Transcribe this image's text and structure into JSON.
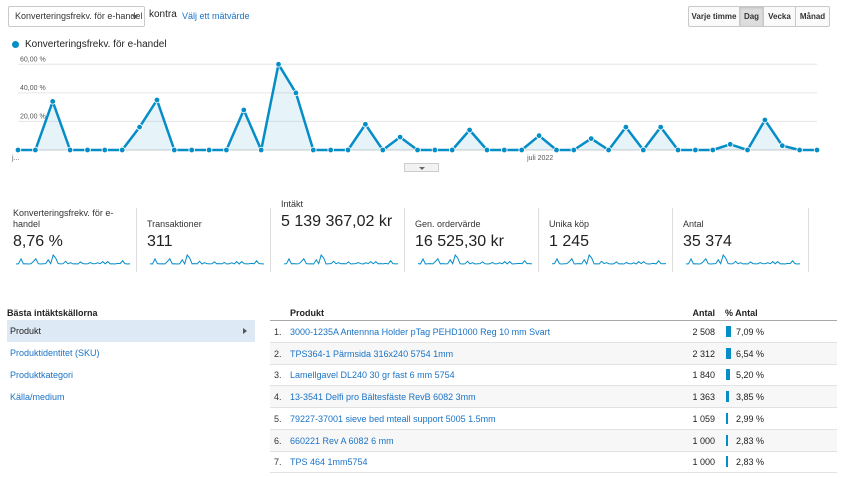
{
  "controls": {
    "metric_select": "Konverteringsfrekv. för e-handel",
    "vs_label": "kontra",
    "choose_metric": "Välj ett mätvärde",
    "time_buttons": [
      {
        "label": "Varje timme",
        "active": false
      },
      {
        "label": "Dag",
        "active": true
      },
      {
        "label": "Vecka",
        "active": false
      },
      {
        "label": "Månad",
        "active": false
      }
    ]
  },
  "legend": {
    "label": "Konverteringsfrekv. för e-handel",
    "color": "#058dc7"
  },
  "chart_data": {
    "type": "area",
    "series": [
      {
        "name": "Konverteringsfrekv. för e-handel",
        "values": [
          0,
          0,
          34,
          0,
          0,
          0,
          0,
          16,
          35,
          0,
          0,
          0,
          0,
          28,
          0,
          60,
          40,
          0,
          0,
          0,
          18,
          0,
          9,
          0,
          0,
          0,
          14,
          0,
          0,
          0,
          10,
          0,
          0,
          8,
          0,
          16,
          0,
          16,
          0,
          0,
          0,
          4,
          0,
          21,
          3,
          0,
          0
        ]
      }
    ],
    "y_ticks": [
      "20,00 %",
      "40,00 %",
      "60,00 %"
    ],
    "y_tick_values": [
      20,
      40,
      60
    ],
    "x_labels": [
      {
        "index": 0,
        "label": "j..."
      },
      {
        "index": 30,
        "label": "juli 2022"
      }
    ],
    "ylim": [
      0,
      70
    ],
    "grid": true
  },
  "scorecards": [
    {
      "title": "Konverteringsfrekv. för e-handel",
      "value": "8,76 %"
    },
    {
      "title": "Transaktioner",
      "value": "311"
    },
    {
      "title": "Intäkt",
      "value": "5 139 367,02 kr"
    },
    {
      "title": "Gen. ordervärde",
      "value": "16 525,30 kr"
    },
    {
      "title": "Unika köp",
      "value": "1 245"
    },
    {
      "title": "Antal",
      "value": "35 374"
    }
  ],
  "sources": {
    "header": "Bästa intäktskällorna",
    "items": [
      {
        "label": "Produkt",
        "active": true
      },
      {
        "label": "Produktidentitet (SKU)",
        "active": false
      },
      {
        "label": "Produktkategori",
        "active": false
      },
      {
        "label": "Källa/medium",
        "active": false
      }
    ]
  },
  "table": {
    "headers": {
      "product": "Produkt",
      "qty": "Antal",
      "pct": "% Antal"
    },
    "rows": [
      {
        "idx": "1.",
        "product": "3000-1235A Antennna Holder pTag PEHD1000 Reg 10 mm Svart",
        "qty": "2 508",
        "pct": "7,09 %",
        "pct_value": 7.09
      },
      {
        "idx": "2.",
        "product": "TPS364-1 Pärmsida 316x240 5754 1mm",
        "qty": "2 312",
        "pct": "6,54 %",
        "pct_value": 6.54
      },
      {
        "idx": "3.",
        "product": "Lamellgavel DL240 30 gr fast 6 mm 5754",
        "qty": "1 840",
        "pct": "5,20 %",
        "pct_value": 5.2
      },
      {
        "idx": "4.",
        "product": "13-3541 Delfi pro Bältesfäste RevB 6082 3mm",
        "qty": "1 363",
        "pct": "3,85 %",
        "pct_value": 3.85
      },
      {
        "idx": "5.",
        "product": "79227-37001 sieve bed mteall support 5005 1.5mm",
        "qty": "1 059",
        "pct": "2,99 %",
        "pct_value": 2.99
      },
      {
        "idx": "6.",
        "product": "660221 Rev A 6082 6 mm",
        "qty": "1 000",
        "pct": "2,83 %",
        "pct_value": 2.83
      },
      {
        "idx": "7.",
        "product": "TPS 464 1mm5754",
        "qty": "1 000",
        "pct": "2,83 %",
        "pct_value": 2.83
      }
    ]
  }
}
